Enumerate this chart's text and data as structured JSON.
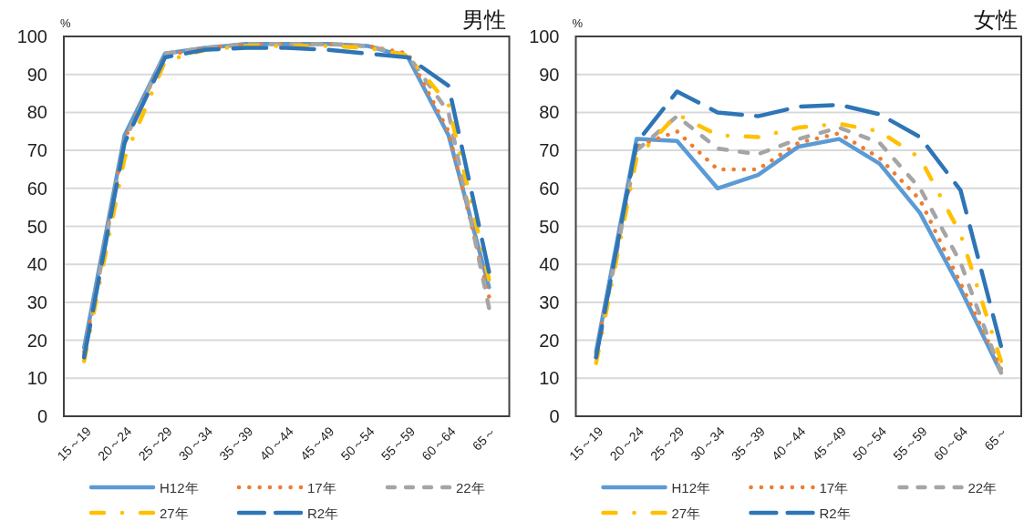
{
  "chart_data": [
    {
      "type": "line",
      "title": "男性",
      "ylabel": "%",
      "categories": [
        "15～19",
        "20～24",
        "25～29",
        "30～34",
        "35～39",
        "40～44",
        "45～49",
        "50～54",
        "55～59",
        "60～64",
        "65～"
      ],
      "ylim": [
        0,
        100
      ],
      "yticks": [
        0,
        10,
        20,
        30,
        40,
        50,
        60,
        70,
        80,
        90,
        100
      ],
      "grid": "y",
      "legend": "bottom",
      "series": [
        {
          "name": "H12年",
          "color": "#5b9bd5",
          "line_style": "solid",
          "values": [
            18,
            74,
            95.5,
            97,
            98,
            98,
            98,
            97.5,
            94.5,
            74,
            34
          ]
        },
        {
          "name": "17年",
          "color": "#ed7d31",
          "line_style": "dotted",
          "values": [
            17,
            73,
            95,
            97,
            98,
            98,
            98,
            97.5,
            95.5,
            75,
            31.5
          ]
        },
        {
          "name": "22年",
          "color": "#a5a5a5",
          "line_style": "dashed",
          "values": [
            16,
            72.5,
            95.5,
            97,
            98,
            98,
            98,
            97.5,
            95,
            80,
            28.5
          ]
        },
        {
          "name": "27年",
          "color": "#ffc000",
          "line_style": "dashdot",
          "values": [
            14.5,
            68,
            93.5,
            96.5,
            97.5,
            97.5,
            97.5,
            97,
            95,
            82,
            36
          ]
        },
        {
          "name": "R2年",
          "color": "#2e75b6",
          "line_style": "longdash",
          "values": [
            15.5,
            72,
            94.5,
            96.5,
            97,
            97,
            96.5,
            95.5,
            94.5,
            87,
            38
          ]
        }
      ]
    },
    {
      "type": "line",
      "title": "女性",
      "ylabel": "%",
      "categories": [
        "15～19",
        "20～24",
        "25～29",
        "30～34",
        "35～39",
        "40～44",
        "45～49",
        "50～54",
        "55～59",
        "60～64",
        "65～"
      ],
      "ylim": [
        0,
        100
      ],
      "yticks": [
        0,
        10,
        20,
        30,
        40,
        50,
        60,
        70,
        80,
        90,
        100
      ],
      "grid": "y",
      "legend": "bottom",
      "series": [
        {
          "name": "H12年",
          "color": "#5b9bd5",
          "line_style": "solid",
          "values": [
            17,
            73,
            72.5,
            60,
            63.5,
            71,
            73,
            66.5,
            53.5,
            33.5,
            11.5
          ]
        },
        {
          "name": "17年",
          "color": "#ed7d31",
          "line_style": "dotted",
          "values": [
            16.5,
            71,
            75,
            65,
            65,
            72,
            74.5,
            68,
            57,
            35,
            12.5
          ]
        },
        {
          "name": "22年",
          "color": "#a5a5a5",
          "line_style": "dashed",
          "values": [
            15.5,
            70,
            79,
            70.5,
            69,
            73,
            76,
            72,
            60,
            40.5,
            11.5
          ]
        },
        {
          "name": "27年",
          "color": "#ffc000",
          "line_style": "dashdot",
          "values": [
            14,
            68,
            79.5,
            74,
            73.5,
            76,
            77,
            75,
            68,
            48,
            14.5
          ]
        },
        {
          "name": "R2年",
          "color": "#2e75b6",
          "line_style": "longdash",
          "values": [
            15.5,
            72,
            85.5,
            80,
            79,
            81.5,
            82,
            79.5,
            73.5,
            59.5,
            18.5
          ]
        }
      ]
    }
  ]
}
